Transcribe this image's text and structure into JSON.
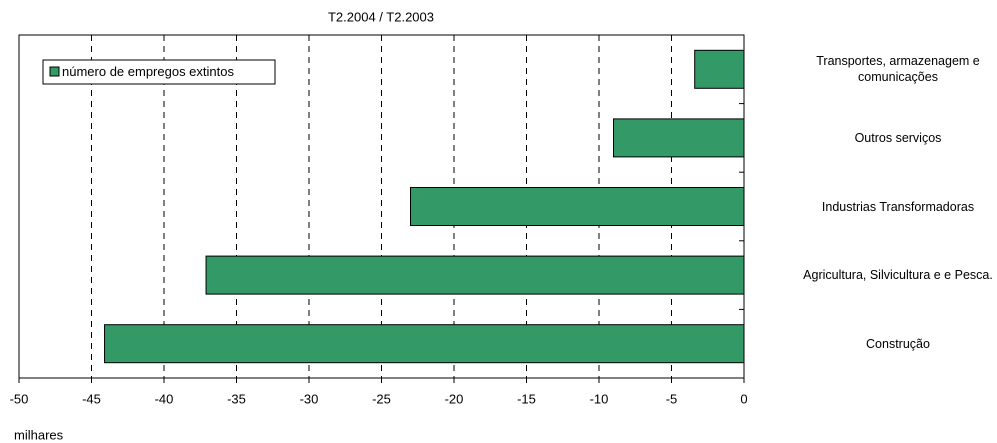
{
  "chart_data": {
    "type": "barh",
    "title": "T2.2004 / T2.2003",
    "xlabel": "milhares",
    "categories": [
      "Transportes, armazenagem e comunicações",
      "Outros serviços",
      "Industrias Transformadoras",
      "Agricultura, Silvicultura e e Pesca.",
      "Construção"
    ],
    "series": [
      {
        "name": "número de empregos extintos",
        "color": "#339966",
        "values": [
          -3.4,
          -9.0,
          -23.0,
          -37.1,
          -44.1
        ]
      }
    ],
    "xlim": [
      -50,
      0
    ],
    "xticks": [
      -50,
      -45,
      -40,
      -35,
      -30,
      -25,
      -20,
      -15,
      -10,
      -5,
      0
    ],
    "grid": true,
    "legend": "upper left"
  }
}
